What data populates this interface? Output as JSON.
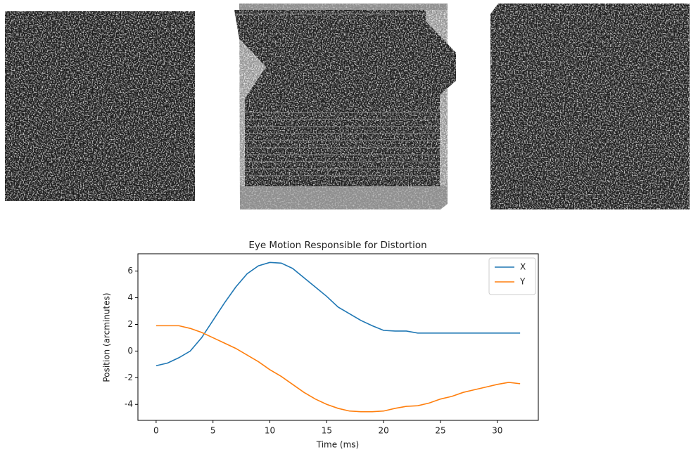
{
  "chart_data": {
    "type": "line",
    "title": "Eye Motion Responsible for Distortion",
    "x_label": "Time (ms)",
    "y_label": "Position (arcminutes)",
    "x": [
      0,
      1,
      2,
      3,
      4,
      5,
      6,
      7,
      8,
      9,
      10,
      11,
      12,
      13,
      14,
      15,
      16,
      17,
      18,
      19,
      20,
      21,
      22,
      23,
      24,
      25,
      26,
      27,
      28,
      29,
      30,
      31,
      32
    ],
    "series": [
      {
        "name": "X",
        "color": "#1f77b4",
        "values": [
          -1.1,
          -0.9,
          -0.5,
          0.0,
          1.0,
          2.3,
          3.6,
          4.8,
          5.8,
          6.4,
          6.65,
          6.6,
          6.2,
          5.5,
          4.8,
          4.1,
          3.3,
          2.8,
          2.3,
          1.9,
          1.55,
          1.5,
          1.5,
          1.35,
          1.35,
          1.35,
          1.35,
          1.35,
          1.35,
          1.35,
          1.35,
          1.35,
          1.35
        ]
      },
      {
        "name": "Y",
        "color": "#ff7f0e",
        "values": [
          1.9,
          1.9,
          1.9,
          1.7,
          1.4,
          1.0,
          0.6,
          0.2,
          -0.3,
          -0.8,
          -1.4,
          -1.9,
          -2.5,
          -3.1,
          -3.6,
          -4.0,
          -4.3,
          -4.5,
          -4.55,
          -4.55,
          -4.5,
          -4.3,
          -4.15,
          -4.1,
          -3.9,
          -3.6,
          -3.4,
          -3.1,
          -2.9,
          -2.7,
          -2.5,
          -2.35,
          -2.45
        ]
      }
    ],
    "xlim": [
      -1.6,
      33.6
    ],
    "ylim": [
      -5.2,
      7.3
    ],
    "xticks": [
      0,
      5,
      10,
      15,
      20,
      25,
      30
    ],
    "yticks": [
      -4,
      -2,
      0,
      2,
      4,
      6
    ],
    "legend": "upper right"
  }
}
